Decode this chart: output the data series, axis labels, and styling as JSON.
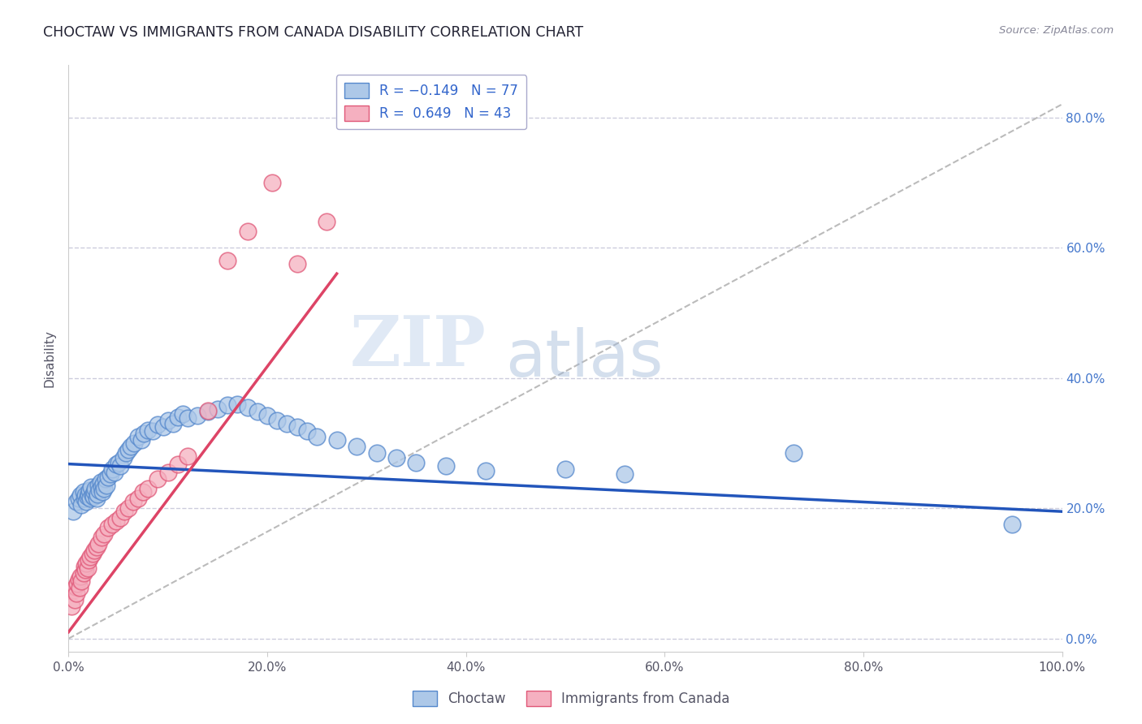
{
  "title": "CHOCTAW VS IMMIGRANTS FROM CANADA DISABILITY CORRELATION CHART",
  "source": "Source: ZipAtlas.com",
  "ylabel": "Disability",
  "xlim": [
    0.0,
    1.0
  ],
  "ylim": [
    -0.02,
    0.88
  ],
  "x_ticks": [
    0.0,
    0.2,
    0.4,
    0.6,
    0.8,
    1.0
  ],
  "x_tick_labels": [
    "0.0%",
    "20.0%",
    "40.0%",
    "60.0%",
    "80.0%",
    "100.0%"
  ],
  "y_ticks": [
    0.0,
    0.2,
    0.4,
    0.6,
    0.8
  ],
  "y_tick_labels": [
    "0.0%",
    "20.0%",
    "40.0%",
    "60.0%",
    "80.0%"
  ],
  "choctaw_color": "#adc8e8",
  "canada_color": "#f5b0c0",
  "choctaw_edge": "#5588cc",
  "canada_edge": "#e05878",
  "trend_blue": "#2255bb",
  "trend_pink": "#dd4466",
  "trend_gray": "#bbbbbb",
  "choctaw_label": "Choctaw",
  "canada_label": "Immigrants from Canada",
  "watermark_zip": "ZIP",
  "watermark_atlas": "atlas",
  "choctaw_x": [
    0.005,
    0.008,
    0.01,
    0.012,
    0.013,
    0.015,
    0.016,
    0.017,
    0.018,
    0.019,
    0.02,
    0.021,
    0.022,
    0.023,
    0.024,
    0.025,
    0.026,
    0.027,
    0.028,
    0.029,
    0.03,
    0.031,
    0.032,
    0.033,
    0.034,
    0.035,
    0.036,
    0.037,
    0.038,
    0.04,
    0.042,
    0.044,
    0.046,
    0.048,
    0.05,
    0.052,
    0.055,
    0.058,
    0.06,
    0.063,
    0.066,
    0.07,
    0.073,
    0.076,
    0.08,
    0.085,
    0.09,
    0.095,
    0.1,
    0.105,
    0.11,
    0.115,
    0.12,
    0.13,
    0.14,
    0.15,
    0.16,
    0.17,
    0.18,
    0.19,
    0.2,
    0.21,
    0.22,
    0.23,
    0.24,
    0.25,
    0.27,
    0.29,
    0.31,
    0.33,
    0.35,
    0.38,
    0.42,
    0.5,
    0.56,
    0.73,
    0.95
  ],
  "choctaw_y": [
    0.195,
    0.21,
    0.215,
    0.22,
    0.205,
    0.225,
    0.215,
    0.22,
    0.21,
    0.218,
    0.222,
    0.228,
    0.215,
    0.232,
    0.22,
    0.218,
    0.225,
    0.23,
    0.215,
    0.222,
    0.235,
    0.228,
    0.24,
    0.232,
    0.225,
    0.238,
    0.23,
    0.245,
    0.235,
    0.248,
    0.252,
    0.26,
    0.255,
    0.268,
    0.27,
    0.265,
    0.278,
    0.285,
    0.29,
    0.295,
    0.3,
    0.31,
    0.305,
    0.315,
    0.32,
    0.318,
    0.328,
    0.325,
    0.335,
    0.33,
    0.34,
    0.345,
    0.338,
    0.342,
    0.348,
    0.352,
    0.358,
    0.36,
    0.355,
    0.348,
    0.342,
    0.335,
    0.33,
    0.325,
    0.318,
    0.31,
    0.305,
    0.295,
    0.285,
    0.278,
    0.27,
    0.265,
    0.258,
    0.26,
    0.252,
    0.285,
    0.175
  ],
  "canada_x": [
    0.003,
    0.005,
    0.006,
    0.007,
    0.008,
    0.009,
    0.01,
    0.011,
    0.012,
    0.013,
    0.015,
    0.016,
    0.017,
    0.018,
    0.019,
    0.02,
    0.022,
    0.024,
    0.026,
    0.028,
    0.03,
    0.033,
    0.036,
    0.04,
    0.044,
    0.048,
    0.052,
    0.056,
    0.06,
    0.065,
    0.07,
    0.075,
    0.08,
    0.09,
    0.1,
    0.11,
    0.12,
    0.14,
    0.16,
    0.18,
    0.205,
    0.23,
    0.26
  ],
  "canada_y": [
    0.05,
    0.075,
    0.06,
    0.08,
    0.07,
    0.085,
    0.09,
    0.078,
    0.095,
    0.088,
    0.1,
    0.11,
    0.105,
    0.115,
    0.108,
    0.12,
    0.125,
    0.13,
    0.135,
    0.14,
    0.145,
    0.155,
    0.16,
    0.17,
    0.175,
    0.18,
    0.185,
    0.195,
    0.2,
    0.21,
    0.215,
    0.225,
    0.23,
    0.245,
    0.255,
    0.268,
    0.28,
    0.35,
    0.58,
    0.625,
    0.7,
    0.575,
    0.64
  ],
  "blue_trend_x": [
    0.0,
    1.0
  ],
  "blue_trend_y": [
    0.268,
    0.195
  ],
  "pink_trend_x": [
    0.0,
    0.27
  ],
  "pink_trend_y": [
    0.01,
    0.56
  ]
}
